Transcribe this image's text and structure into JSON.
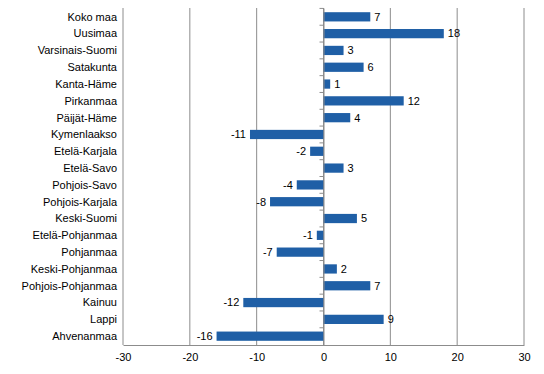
{
  "chart_data": {
    "type": "bar",
    "orientation": "horizontal",
    "categories": [
      "Koko maa",
      "Uusimaa",
      "Varsinais-Suomi",
      "Satakunta",
      "Kanta-Häme",
      "Pirkanmaa",
      "Päijät-Häme",
      "Kymenlaakso",
      "Etelä-Karjala",
      "Etelä-Savo",
      "Pohjois-Savo",
      "Pohjois-Karjala",
      "Keski-Suomi",
      "Etelä-Pohjanmaa",
      "Pohjanmaa",
      "Keski-Pohjanmaa",
      "Pohjois-Pohjanmaa",
      "Kainuu",
      "Lappi",
      "Ahvenanmaa"
    ],
    "values": [
      7,
      18,
      3,
      6,
      1,
      12,
      4,
      -11,
      -2,
      3,
      -4,
      -8,
      5,
      -1,
      -7,
      2,
      7,
      -12,
      9,
      -16
    ],
    "color": "#1f5fa6",
    "xlim": [
      -30,
      30
    ],
    "xticks": [
      -30,
      -20,
      -10,
      0,
      10,
      20,
      30
    ],
    "grid": true,
    "data_labels": true
  }
}
